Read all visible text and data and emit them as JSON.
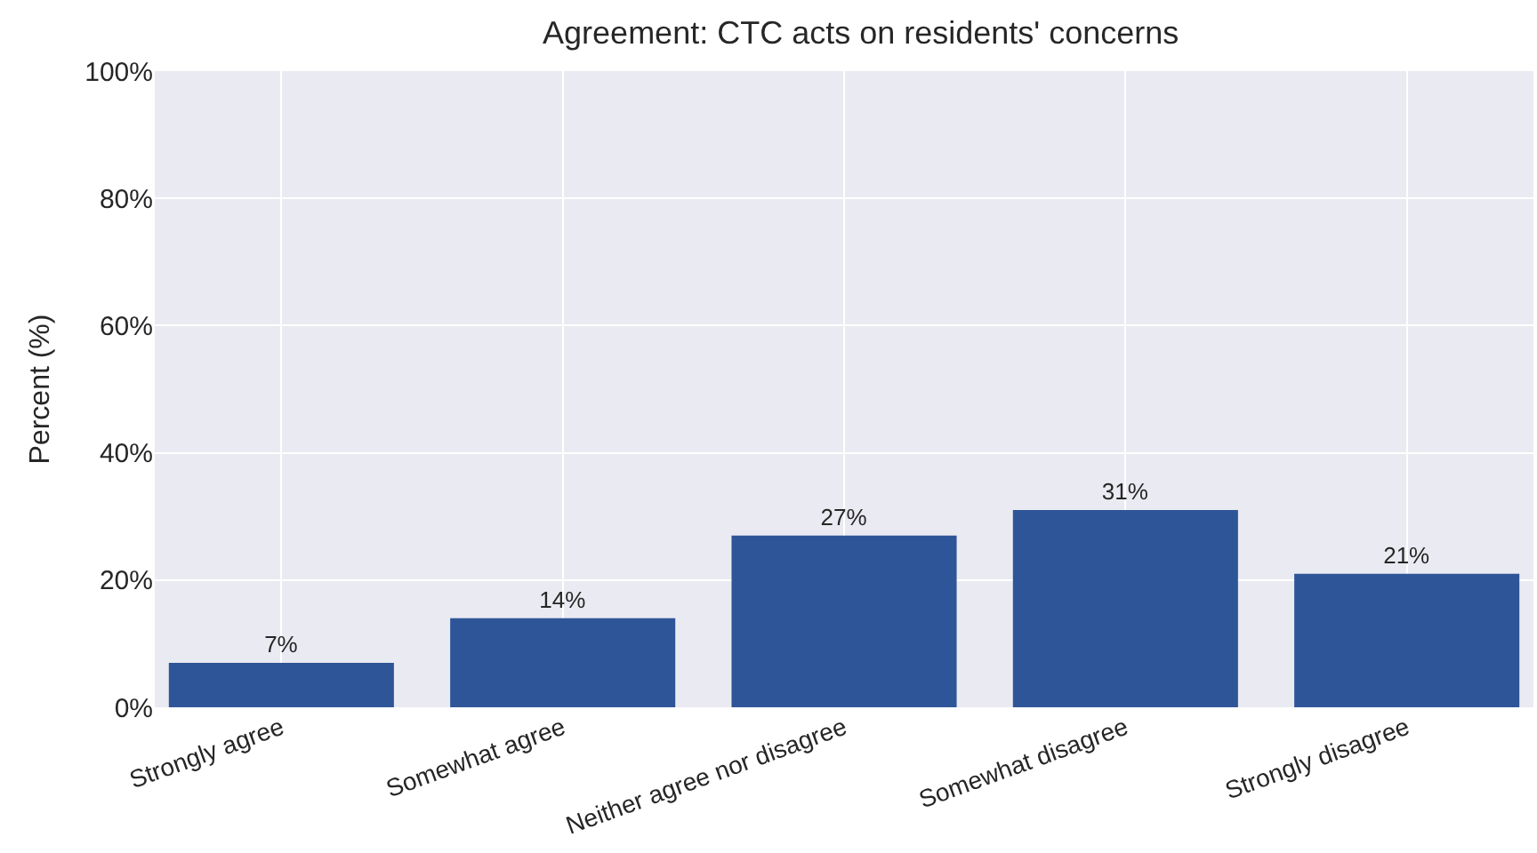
{
  "chart_data": {
    "type": "bar",
    "title": "Agreement: CTC acts on residents' concerns",
    "ylabel": "Percent (%)",
    "categories": [
      "Strongly agree",
      "Somewhat agree",
      "Neither agree nor disagree",
      "Somewhat disagree",
      "Strongly disagree"
    ],
    "values": [
      7,
      14,
      27,
      31,
      21
    ],
    "value_labels": [
      "7%",
      "14%",
      "27%",
      "31%",
      "21%"
    ],
    "color": "#2e5597",
    "ylim": [
      0,
      100
    ],
    "yticks": [
      {
        "value": 0,
        "label": "0%"
      },
      {
        "value": 20,
        "label": "20%"
      },
      {
        "value": 40,
        "label": "40%"
      },
      {
        "value": 60,
        "label": "60%"
      },
      {
        "value": 80,
        "label": "80%"
      },
      {
        "value": 100,
        "label": "100%"
      }
    ],
    "grid": true
  }
}
